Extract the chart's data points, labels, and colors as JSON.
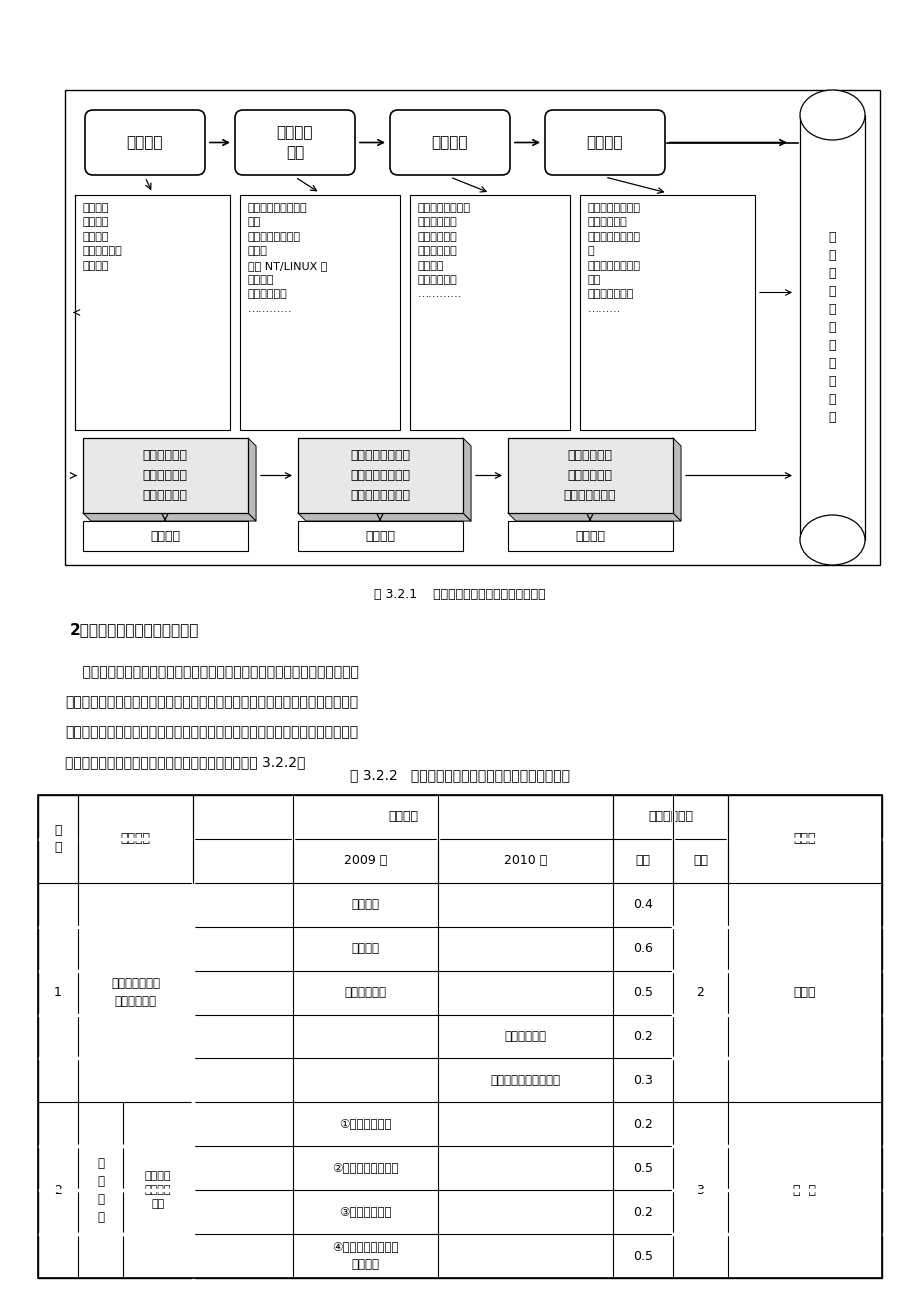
{
  "page_bg": "#ffffff",
  "title_fig": "图 3.2.1    计算机网络技术专业课程体系构建",
  "section_title": "2、建设工学结合优质核心课程",
  "para_lines": [
    "    以专业教师为主，由行业专家和企业工程师参与，组成课程建设团队，共同",
    "开发课程标准、教学实施方案、教学课件、立体化教材、职业认证试题库、教学",
    "资源库等。将《网络服务器配置与管理》课程建设成为省级精品课程，将《网络",
    "设备配置与管理》课程建设成为院级精品课程。见表 3.2.2。"
  ],
  "table_title": "表 3.2.2   课程体系与教学内容改革建设与资金分配表",
  "flow_labels": [
    "职业岗位",
    "典型工作\n任务",
    "行动领域",
    "学习领域"
  ],
  "content_texts": [
    "网络组建\n网络管理\n网络应用\n网络产品营销\n自主创业",
    "组装维护计算机软、\n硬件\n配置调试交换机、\n路由器\n管理 NT/LINUX 网\n络服务器\n开发网站程序\n…………",
    "计算机组装、维护\n网络工程设计\n网络设备配置\n网络服务管理\n网页设计\n网站后台开发\n…………",
    "计算机组装与维修\n综合布线设计\n网络设备配置与管\n理\n网络服务器配置与\n管理\n网站构建与开发\n………"
  ],
  "skill_texts": [
    "自主学习能力\n分析问题能力\n解决问题能力",
    "网络工程组建能力\n网络服务管理能力\n网站开发应用能力",
    "交流沟通能力\n团结合作意识\n责任、安全意识"
  ],
  "label_texts": [
    "方法能力",
    "专业能力",
    "社会能力"
  ],
  "right_text": "计\n算\n机\n网\n络\n技\n术\n技\n能\n人\n才"
}
